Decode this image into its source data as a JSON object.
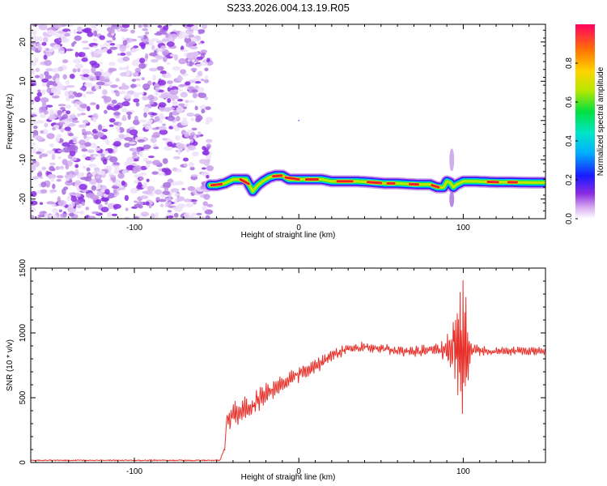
{
  "title": "S233.2026.004.13.19.R05",
  "colors": {
    "line": "#e8312a",
    "spectrum_dots": "#8a2be2",
    "track_core": "#e8202a"
  },
  "chart_data": [
    {
      "type": "heatmap",
      "name": "spectrogram",
      "xlabel": "Height of straight line (km)",
      "ylabel": "Frequency (Hz)",
      "xlim": [
        -163,
        150
      ],
      "ylim": [
        -25,
        24.5
      ],
      "xticks": [
        -100,
        0,
        100
      ],
      "xtick_labels": [
        "-100",
        "0",
        "100"
      ],
      "yticks": [
        -20,
        -10,
        0,
        10,
        20
      ],
      "ytick_labels": [
        "-20",
        "-10",
        "0",
        "10",
        "20"
      ],
      "noise_region_x": [
        -163,
        -54
      ],
      "track": {
        "x": [
          -54,
          -50,
          -45,
          -40,
          -36,
          -32,
          -28,
          -25,
          -22,
          -18,
          -14,
          -10,
          -6,
          -2,
          2,
          6,
          10,
          14,
          20,
          28,
          36,
          44,
          52,
          60,
          68,
          74,
          80,
          84,
          88,
          90,
          92,
          94,
          96,
          100,
          108,
          120,
          130,
          140,
          150
        ],
        "freq": [
          -16.5,
          -16.5,
          -16,
          -15,
          -15,
          -15,
          -18,
          -16.5,
          -15.5,
          -14.5,
          -14,
          -14,
          -15,
          -15,
          -15,
          -15,
          -15,
          -15,
          -15.5,
          -15.5,
          -15.5,
          -15.7,
          -16,
          -16,
          -16.2,
          -16.3,
          -16.3,
          -17,
          -17,
          -15.5,
          -15.8,
          -17,
          -16.3,
          -15.5,
          -15.5,
          -15.7,
          -15.7,
          -15.8,
          -15.8
        ]
      },
      "colorbar": {
        "label": "Normalized spectral amplitude",
        "range": [
          0,
          1
        ],
        "ticks": [
          0,
          0.2,
          0.4,
          0.6,
          0.8
        ],
        "tick_labels": [
          "0.0",
          "0.2",
          "0.4",
          "0.6",
          "0.8"
        ]
      }
    },
    {
      "type": "line",
      "name": "snr",
      "xlabel": "Height of straight line (km)",
      "ylabel": "SNR (10 * v/v)",
      "xlim": [
        -163,
        150
      ],
      "ylim": [
        0,
        1500
      ],
      "xticks": [
        -100,
        0,
        100
      ],
      "xtick_labels": [
        "-100",
        "0",
        "100"
      ],
      "yticks": [
        0,
        500,
        1000,
        1500
      ],
      "ytick_labels": [
        "0",
        "500",
        "1000",
        "1500"
      ],
      "series": [
        {
          "name": "SNR",
          "x": [
            -163,
            -48,
            -45,
            -44,
            -40,
            -30,
            -20,
            -10,
            0,
            10,
            20,
            30,
            40,
            50,
            60,
            70,
            80,
            85,
            90,
            95,
            100,
            105,
            110,
            120,
            130,
            140,
            150
          ],
          "y": [
            15,
            15,
            100,
            300,
            380,
            430,
            530,
            600,
            680,
            740,
            820,
            880,
            890,
            880,
            860,
            860,
            870,
            870,
            860,
            880,
            860,
            870,
            860,
            860,
            860,
            860,
            860
          ],
          "noise_amplitude": [
            8,
            8,
            20,
            90,
            110,
            100,
            90,
            80,
            70,
            65,
            60,
            45,
            45,
            45,
            45,
            45,
            50,
            60,
            140,
            260,
            500,
            60,
            45,
            40,
            40,
            40,
            40
          ]
        }
      ]
    }
  ]
}
